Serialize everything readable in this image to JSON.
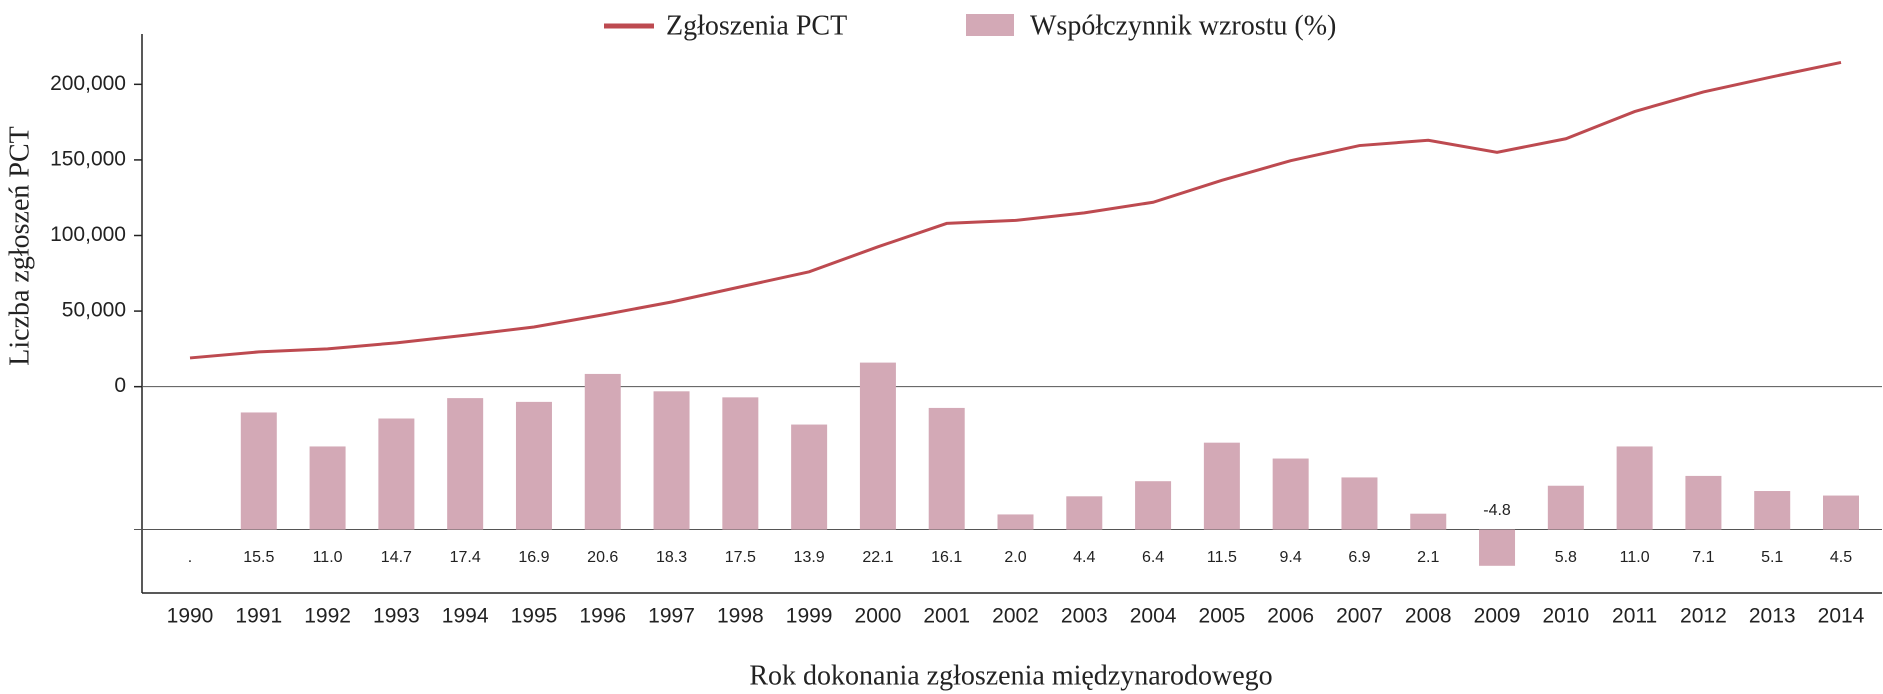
{
  "chart_data": {
    "type": "combo",
    "x_label": "Rok dokonania zgłoszenia międzynarodowego",
    "y_label": "Liczba zgłoszeń PCT",
    "categories": [
      "1990",
      "1991",
      "1992",
      "1993",
      "1994",
      "1995",
      "1996",
      "1997",
      "1998",
      "1999",
      "2000",
      "2001",
      "2002",
      "2003",
      "2004",
      "2005",
      "2006",
      "2007",
      "2008",
      "2009",
      "2010",
      "2011",
      "2012",
      "2013",
      "2014"
    ],
    "series": [
      {
        "name": "Zgłoszenia PCT",
        "type": "line",
        "color": "#bd4a50",
        "values": [
          19000,
          23000,
          25000,
          29000,
          34000,
          39500,
          47500,
          56000,
          66000,
          76000,
          92500,
          108000,
          110000,
          115000,
          122000,
          136500,
          149500,
          159500,
          163000,
          155000,
          164000,
          182000,
          195000,
          205000,
          214500
        ]
      },
      {
        "name": "Współczynnik wzrostu (%)",
        "type": "bar",
        "color": "#d3a9b6",
        "axis": "y2",
        "values": [
          null,
          15.5,
          11.0,
          14.7,
          17.4,
          16.9,
          20.6,
          18.3,
          17.5,
          13.9,
          22.1,
          16.1,
          2.0,
          4.4,
          6.4,
          11.5,
          9.4,
          6.9,
          2.1,
          -4.8,
          5.8,
          11.0,
          7.1,
          5.1,
          4.5
        ],
        "value_labels": [
          ".",
          "15.5",
          "11.0",
          "14.7",
          "17.4",
          "16.9",
          "20.6",
          "18.3",
          "17.5",
          "13.9",
          "22.1",
          "16.1",
          "2.0",
          "4.4",
          "6.4",
          "11.5",
          "9.4",
          "6.9",
          "2.1",
          "-4.8",
          "5.8",
          "11.0",
          "7.1",
          "5.1",
          "4.5"
        ]
      }
    ],
    "ylim": [
      -136500,
      233300
    ],
    "yticks": [
      0,
      {
        "value": 50000,
        "label": "50,000"
      },
      {
        "value": 100000,
        "label": "100,000"
      },
      {
        "value": 150000,
        "label": "150,000"
      },
      {
        "value": 200000,
        "label": "200,000"
      }
    ],
    "y2lim": [
      -8.4,
      65.6
    ]
  }
}
